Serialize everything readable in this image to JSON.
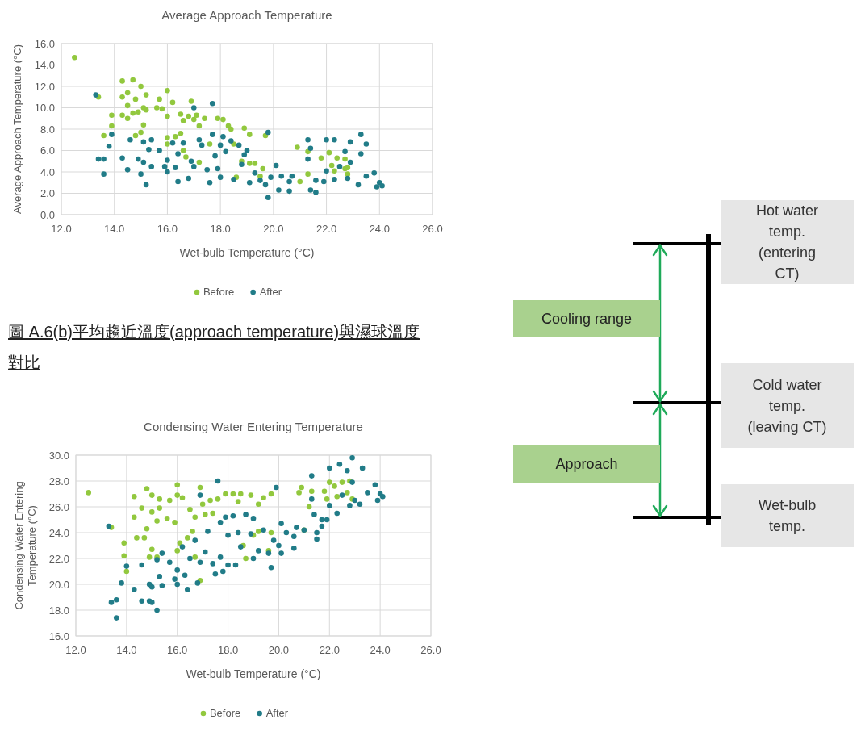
{
  "chart_data": [
    {
      "type": "scatter",
      "title": "Average Approach Temperature",
      "xlabel": "Wet-bulb Temperature (°C)",
      "ylabel": "Average Approach Temperature (°C)",
      "xlim": [
        12,
        26
      ],
      "ylim": [
        0,
        16
      ],
      "xticks": [
        {
          "value": 12,
          "label": "12.0"
        },
        {
          "value": 14,
          "label": "14.0"
        },
        {
          "value": 16,
          "label": "16.0"
        },
        {
          "value": 18,
          "label": "18.0"
        },
        {
          "value": 20,
          "label": "20.0"
        },
        {
          "value": 22,
          "label": "22.0"
        },
        {
          "value": 24,
          "label": "24.0"
        },
        {
          "value": 26,
          "label": "26.0"
        }
      ],
      "yticks": [
        {
          "value": 0,
          "label": "0.0"
        },
        {
          "value": 2,
          "label": "2.0"
        },
        {
          "value": 4,
          "label": "4.0"
        },
        {
          "value": 6,
          "label": "6.0"
        },
        {
          "value": 8,
          "label": "8.0"
        },
        {
          "value": 10,
          "label": "10.0"
        },
        {
          "value": 12,
          "label": "12.0"
        },
        {
          "value": 14,
          "label": "14.0"
        },
        {
          "value": 16,
          "label": "16.0"
        }
      ],
      "grid": true,
      "legend": "bottom",
      "marker": "circle",
      "annotations": [
        "圖 A.6(b)平均趨近溫度(approach temperature)與濕球溫度對比"
      ],
      "series": [
        {
          "name": "Before",
          "color": "#92c83e",
          "x": [
            12.5,
            13.4,
            13.6,
            13.9,
            13.9,
            14.3,
            14.3,
            14.3,
            14.5,
            14.5,
            14.5,
            14.7,
            14.7,
            14.8,
            14.8,
            14.9,
            15.0,
            15.0,
            15.1,
            15.1,
            15.2,
            15.2,
            15.6,
            15.7,
            15.8,
            16.0,
            16.0,
            16.0,
            16.0,
            16.2,
            16.3,
            16.5,
            16.5,
            16.6,
            16.6,
            16.7,
            16.8,
            16.9,
            17.0,
            17.1,
            17.2,
            17.2,
            17.4,
            17.6,
            17.9,
            18.1,
            18.3,
            18.4,
            18.5,
            18.6,
            18.8,
            18.9,
            19.1,
            19.1,
            19.3,
            19.5,
            19.6,
            19.7,
            20.9,
            21.0,
            21.3,
            21.3,
            21.8,
            22.1,
            22.2,
            22.3,
            22.4,
            22.7,
            22.8,
            22.7,
            22.8
          ],
          "values": [
            14.7,
            11.0,
            7.4,
            9.3,
            8.3,
            12.5,
            11.0,
            9.3,
            11.4,
            10.2,
            9.0,
            12.6,
            9.5,
            7.4,
            10.8,
            9.6,
            12.0,
            7.7,
            8.4,
            10.0,
            11.2,
            9.8,
            10.0,
            10.8,
            9.9,
            11.6,
            9.2,
            6.6,
            7.2,
            10.5,
            7.3,
            9.4,
            7.6,
            8.8,
            6.0,
            5.4,
            9.2,
            10.6,
            8.9,
            9.3,
            8.3,
            4.9,
            9.0,
            6.6,
            9.0,
            8.9,
            8.3,
            8.0,
            6.6,
            3.5,
            5.0,
            8.1,
            4.8,
            7.5,
            4.8,
            3.6,
            4.3,
            7.4,
            6.3,
            3.1,
            3.8,
            5.9,
            5.3,
            5.8,
            4.6,
            4.1,
            5.3,
            4.3,
            3.8,
            5.2,
            4.4
          ]
        },
        {
          "name": "After",
          "color": "#217c88",
          "x": [
            13.3,
            13.4,
            13.6,
            13.6,
            13.8,
            13.9,
            14.3,
            14.5,
            14.6,
            14.9,
            15.0,
            15.1,
            15.1,
            15.2,
            15.3,
            15.4,
            15.4,
            15.7,
            15.9,
            16.0,
            16.0,
            16.2,
            16.3,
            16.4,
            16.4,
            16.6,
            16.8,
            16.9,
            17.0,
            17.0,
            17.2,
            17.3,
            17.5,
            17.6,
            17.7,
            17.7,
            17.8,
            17.9,
            18.0,
            18.0,
            18.1,
            18.2,
            18.4,
            18.5,
            18.7,
            18.8,
            18.9,
            19.0,
            19.1,
            19.3,
            19.5,
            19.7,
            19.8,
            19.8,
            19.9,
            20.1,
            20.2,
            20.3,
            20.6,
            20.6,
            20.7,
            21.3,
            21.3,
            21.4,
            21.4,
            21.6,
            21.6,
            21.9,
            22.0,
            22.0,
            22.3,
            22.3,
            22.5,
            22.7,
            22.8,
            22.9,
            22.9,
            23.2,
            23.3,
            23.3,
            23.5,
            23.5,
            23.8,
            23.9,
            24.0,
            24.1
          ],
          "values": [
            11.2,
            5.2,
            5.2,
            3.8,
            6.4,
            7.5,
            5.3,
            4.2,
            7.0,
            5.2,
            3.8,
            4.9,
            6.8,
            2.8,
            6.1,
            7.0,
            4.5,
            6.0,
            4.5,
            5.1,
            4.0,
            6.7,
            4.4,
            3.1,
            5.7,
            6.7,
            3.4,
            5.0,
            10.0,
            4.5,
            7.0,
            6.5,
            4.2,
            3.0,
            10.4,
            7.5,
            5.5,
            4.3,
            6.5,
            3.5,
            7.3,
            5.9,
            6.9,
            3.3,
            6.5,
            4.7,
            5.6,
            6.0,
            3.0,
            3.9,
            3.2,
            2.8,
            1.6,
            7.7,
            3.5,
            4.6,
            2.3,
            3.6,
            3.1,
            2.2,
            3.6,
            7.0,
            5.2,
            2.3,
            6.2,
            2.1,
            3.2,
            3.1,
            7.0,
            4.1,
            7.0,
            3.3,
            4.5,
            5.9,
            3.4,
            4.9,
            6.8,
            2.8,
            7.5,
            5.7,
            6.6,
            3.6,
            3.9,
            2.6,
            3.0,
            2.7
          ]
        }
      ]
    },
    {
      "type": "scatter",
      "title": "Condensing Water Entering Temperature",
      "xlabel": "Wet-bulb Temperature (°C)",
      "ylabel": "Condensing Water Entering Temperature (°C)",
      "xlim": [
        12,
        26
      ],
      "ylim": [
        16,
        30
      ],
      "xticks": [
        {
          "value": 12,
          "label": "12.0"
        },
        {
          "value": 14,
          "label": "14.0"
        },
        {
          "value": 16,
          "label": "16.0"
        },
        {
          "value": 18,
          "label": "18.0"
        },
        {
          "value": 20,
          "label": "20.0"
        },
        {
          "value": 22,
          "label": "22.0"
        },
        {
          "value": 24,
          "label": "24.0"
        },
        {
          "value": 26,
          "label": "26.0"
        }
      ],
      "yticks": [
        {
          "value": 16,
          "label": "16.0"
        },
        {
          "value": 18,
          "label": "18.0"
        },
        {
          "value": 20,
          "label": "20.0"
        },
        {
          "value": 22,
          "label": "22.0"
        },
        {
          "value": 24,
          "label": "24.0"
        },
        {
          "value": 26,
          "label": "26.0"
        },
        {
          "value": 28,
          "label": "28.0"
        },
        {
          "value": 30,
          "label": "30.0"
        }
      ],
      "grid": true,
      "legend": "bottom",
      "marker": "circle",
      "series": [
        {
          "name": "Before",
          "color": "#92c83e",
          "x": [
            12.5,
            13.4,
            13.9,
            13.9,
            14.0,
            14.3,
            14.3,
            14.4,
            14.6,
            14.7,
            14.8,
            14.8,
            14.9,
            15.0,
            15.0,
            15.0,
            15.2,
            15.2,
            15.3,
            15.3,
            15.6,
            15.7,
            15.9,
            16.0,
            16.0,
            16.0,
            16.1,
            16.2,
            16.4,
            16.5,
            16.6,
            16.7,
            16.7,
            16.9,
            16.9,
            17.0,
            17.1,
            17.3,
            17.4,
            17.6,
            17.9,
            18.2,
            18.4,
            18.5,
            18.6,
            18.7,
            18.9,
            19.0,
            19.2,
            19.2,
            19.4,
            19.6,
            19.7,
            19.7,
            20.8,
            20.9,
            21.0,
            21.2,
            21.3,
            21.8,
            21.9,
            22.0,
            22.2,
            22.3,
            22.5,
            22.7,
            22.8,
            22.9
          ],
          "values": [
            27.1,
            24.4,
            23.2,
            22.2,
            21.0,
            26.8,
            25.2,
            23.6,
            25.9,
            23.6,
            27.4,
            24.3,
            22.1,
            25.6,
            26.9,
            22.7,
            24.9,
            22.1,
            26.6,
            25.9,
            25.1,
            26.5,
            24.8,
            27.7,
            26.9,
            22.6,
            23.2,
            26.7,
            23.6,
            25.8,
            24.1,
            22.1,
            25.2,
            27.5,
            20.3,
            26.2,
            25.4,
            26.5,
            25.5,
            26.6,
            27.0,
            27.0,
            26.4,
            27.0,
            23.0,
            22.0,
            26.9,
            23.8,
            26.2,
            24.1,
            26.7,
            22.6,
            24.0,
            27.0,
            27.1,
            27.5,
            24.2,
            26.0,
            27.2,
            27.2,
            26.6,
            27.9,
            27.6,
            26.8,
            27.9,
            27.1,
            28.0,
            26.6
          ]
        },
        {
          "name": "After",
          "color": "#217c88",
          "x": [
            13.3,
            13.4,
            13.6,
            13.6,
            13.8,
            14.0,
            14.3,
            14.6,
            14.6,
            14.9,
            14.9,
            15.0,
            15.0,
            15.2,
            15.2,
            15.3,
            15.4,
            15.4,
            15.7,
            15.9,
            16.0,
            16.0,
            16.2,
            16.3,
            16.4,
            16.5,
            16.7,
            16.8,
            16.9,
            16.9,
            17.1,
            17.2,
            17.4,
            17.5,
            17.6,
            17.7,
            17.7,
            17.8,
            17.9,
            18.0,
            18.0,
            18.2,
            18.3,
            18.4,
            18.5,
            18.7,
            18.9,
            19.0,
            19.0,
            19.2,
            19.4,
            19.6,
            19.7,
            19.8,
            19.9,
            20.0,
            20.1,
            20.1,
            20.3,
            20.6,
            20.6,
            20.7,
            21.0,
            21.3,
            21.3,
            21.4,
            21.5,
            21.5,
            21.7,
            21.7,
            21.9,
            22.0,
            22.0,
            22.3,
            22.4,
            22.5,
            22.7,
            22.8,
            22.9,
            22.9,
            23.0,
            23.2,
            23.3,
            23.5,
            23.8,
            23.9,
            24.0,
            24.1
          ],
          "values": [
            24.5,
            18.6,
            18.8,
            17.4,
            20.1,
            21.4,
            19.6,
            21.5,
            18.7,
            20.0,
            18.7,
            18.6,
            19.8,
            21.9,
            18.0,
            20.6,
            22.4,
            19.9,
            21.7,
            20.4,
            21.1,
            20.0,
            22.9,
            20.7,
            19.6,
            22.0,
            23.4,
            20.1,
            26.9,
            21.7,
            22.5,
            24.1,
            21.6,
            20.8,
            28.0,
            22.1,
            24.8,
            21.0,
            25.2,
            21.5,
            23.8,
            25.3,
            21.5,
            24.0,
            22.9,
            25.4,
            23.9,
            22.0,
            25.1,
            22.6,
            24.2,
            22.4,
            21.3,
            23.4,
            27.5,
            23.0,
            24.7,
            22.4,
            24.0,
            23.7,
            22.8,
            24.4,
            24.2,
            28.4,
            26.6,
            25.4,
            24.0,
            23.5,
            25.0,
            24.5,
            25.0,
            29.0,
            26.1,
            25.5,
            29.3,
            26.9,
            28.8,
            26.1,
            27.9,
            29.8,
            26.5,
            26.2,
            29.0,
            27.1,
            27.7,
            26.5,
            27.0,
            26.8
          ]
        }
      ]
    },
    {
      "type": "other",
      "annotations": [
        "Hot water temp. (entering CT)",
        "Cold water temp. (leaving CT)",
        "Wet-bulb temp.",
        "Cooling range",
        "Approach"
      ]
    }
  ]
}
